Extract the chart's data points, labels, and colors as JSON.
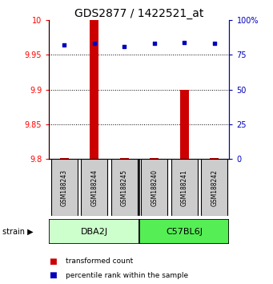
{
  "title": "GDS2877 / 1422521_at",
  "samples": [
    "GSM188243",
    "GSM188244",
    "GSM188245",
    "GSM188240",
    "GSM188241",
    "GSM188242"
  ],
  "red_values": [
    9.801,
    10.0,
    9.802,
    9.801,
    9.9,
    9.801
  ],
  "blue_values": [
    82,
    83,
    81,
    83,
    84,
    83
  ],
  "ylim_left": [
    9.8,
    10.0
  ],
  "ylim_right": [
    0,
    100
  ],
  "yticks_left": [
    9.8,
    9.85,
    9.9,
    9.95,
    10.0
  ],
  "ytick_labels_left": [
    "9.8",
    "9.85",
    "9.9",
    "9.95",
    "10"
  ],
  "yticks_right": [
    0,
    25,
    50,
    75,
    100
  ],
  "ytick_labels_right": [
    "0",
    "25",
    "50",
    "75",
    "100%"
  ],
  "groups": [
    {
      "label": "DBA2J",
      "indices": [
        0,
        1,
        2
      ],
      "color": "#ccffcc"
    },
    {
      "label": "C57BL6J",
      "indices": [
        3,
        4,
        5
      ],
      "color": "#55ee55"
    }
  ],
  "bar_color": "#cc0000",
  "dot_color": "#0000bb",
  "sample_box_color": "#cccccc",
  "background_color": "#ffffff",
  "title_fontsize": 10,
  "tick_fontsize": 7,
  "sample_fontsize": 5.5,
  "group_fontsize": 8,
  "legend_fontsize": 6.5,
  "strain_fontsize": 7,
  "bar_width": 0.3
}
